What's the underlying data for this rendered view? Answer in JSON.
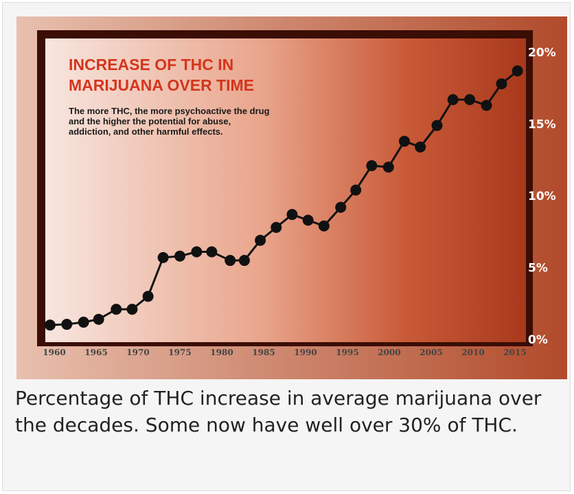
{
  "chart_data": {
    "type": "line",
    "title": "INCREASE OF THC IN MARIJUANA OVER TIME",
    "subtitle": "The more THC, the more psychoactive the drug and the higher the potential for abuse, addiction, and other harmful effects.",
    "x": [
      1959.5,
      1961.5,
      1963.5,
      1965.3,
      1967.4,
      1969.3,
      1971.2,
      1973,
      1975,
      1977,
      1978.8,
      1981,
      1982.7,
      1984.6,
      1986.5,
      1988.4,
      1990.3,
      1992.2,
      1994.2,
      1996,
      1997.9,
      1999.9,
      2001.8,
      2003.7,
      2005.7,
      2007.6,
      2009.6,
      2011.6,
      2013.4,
      2015.3
    ],
    "series": [
      {
        "color": "#111111",
        "values": [
          1.0,
          1.05,
          1.2,
          1.4,
          2.1,
          2.1,
          3.0,
          5.7,
          5.8,
          6.1,
          6.1,
          5.5,
          5.5,
          6.9,
          7.8,
          8.7,
          8.3,
          7.9,
          9.2,
          10.4,
          12.1,
          12.0,
          13.8,
          13.4,
          14.9,
          16.7,
          16.7,
          16.3,
          17.8,
          18.7
        ]
      }
    ],
    "xlim": [
      1958,
      2016.5
    ],
    "xticks": [
      1960,
      1965,
      1970,
      1975,
      1980,
      1985,
      1990,
      1995,
      2000,
      2005,
      2010,
      2015
    ],
    "ylim": [
      -1,
      21.5
    ],
    "yticks": [
      {
        "value": 0,
        "label": "0%"
      },
      {
        "value": 5,
        "label": "5%"
      },
      {
        "value": 10,
        "label": "10%"
      },
      {
        "value": 15,
        "label": "15%"
      },
      {
        "value": 20,
        "label": "20%"
      }
    ]
  },
  "caption": "Percentage of THC increase in average marijuana over the decades.  Some now have well over 30% of THC."
}
